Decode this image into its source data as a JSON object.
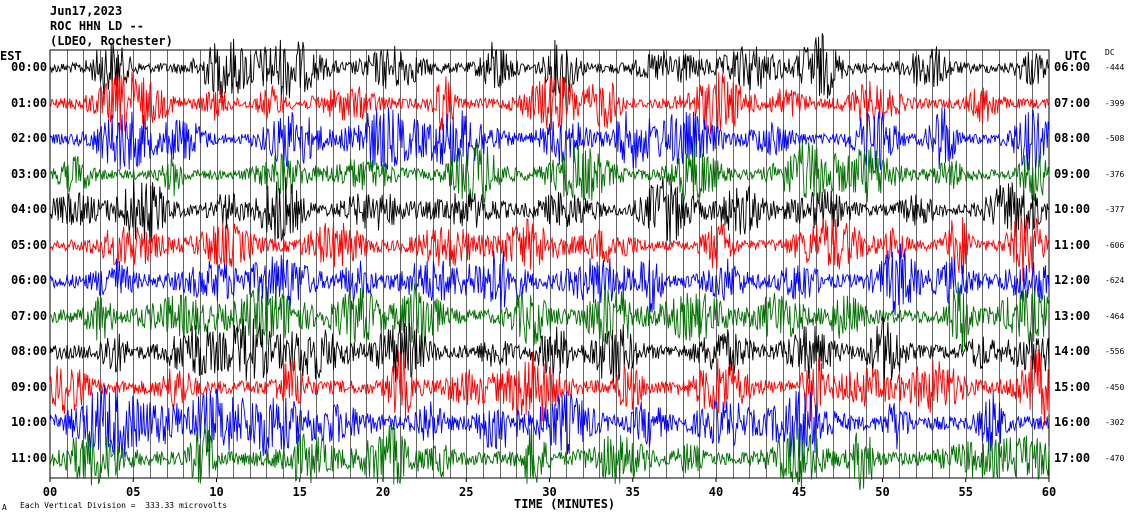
{
  "header": {
    "date": "Jun17,2023",
    "station": "ROC HHN LD --",
    "network": "(LDEO, Rochester)",
    "left_zone": "EST",
    "right_zone": "UTC",
    "dc_label": "DC"
  },
  "footer": {
    "scale_note": "Each Vertical Division =  333.33 microvolts",
    "corner_mark": "A"
  },
  "colors": {
    "black": "#000000",
    "red": "#ff0000",
    "blue": "#0000ff",
    "green": "#007000",
    "grid": "#000000"
  },
  "chart_data": {
    "type": "line",
    "title": "",
    "xlabel": "TIME (MINUTES)",
    "ylabel": "",
    "xlim": [
      0,
      60
    ],
    "x_ticks": [
      "00",
      "05",
      "10",
      "15",
      "20",
      "25",
      "30",
      "35",
      "40",
      "45",
      "50",
      "55",
      "60"
    ],
    "grid": true,
    "rows": [
      {
        "est": "00:00",
        "utc": "06:00",
        "dc": "-444",
        "color": "black"
      },
      {
        "est": "01:00",
        "utc": "07:00",
        "dc": "-399",
        "color": "red"
      },
      {
        "est": "02:00",
        "utc": "08:00",
        "dc": "-508",
        "color": "blue"
      },
      {
        "est": "03:00",
        "utc": "09:00",
        "dc": "-376",
        "color": "green"
      },
      {
        "est": "04:00",
        "utc": "10:00",
        "dc": "-377",
        "color": "black"
      },
      {
        "est": "05:00",
        "utc": "11:00",
        "dc": "-606",
        "color": "red"
      },
      {
        "est": "06:00",
        "utc": "12:00",
        "dc": "-624",
        "color": "blue"
      },
      {
        "est": "07:00",
        "utc": "13:00",
        "dc": "-464",
        "color": "green"
      },
      {
        "est": "08:00",
        "utc": "14:00",
        "dc": "-556",
        "color": "black"
      },
      {
        "est": "09:00",
        "utc": "15:00",
        "dc": "-450",
        "color": "red"
      },
      {
        "est": "10:00",
        "utc": "16:00",
        "dc": "-302",
        "color": "blue"
      },
      {
        "est": "11:00",
        "utc": "17:00",
        "dc": "-470",
        "color": "green"
      }
    ]
  }
}
